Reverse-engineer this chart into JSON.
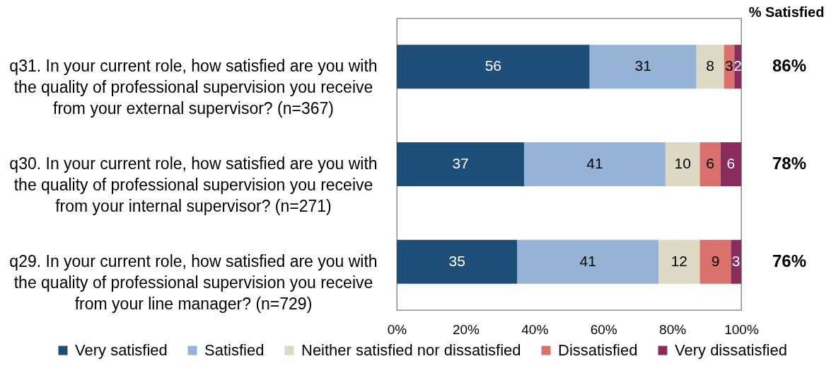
{
  "chart_data": {
    "type": "bar",
    "orientation": "horizontal",
    "stacked": true,
    "categories": [
      "q31. In your current role, how satisfied are you with the quality of professional supervision you receive from your external supervisor? (n=367)",
      "q30. In your current role, how satisfied are you with the quality of professional supervision you receive from your internal supervisor? (n=271)",
      "q29. In your current role, how satisfied are you with the quality of professional supervision you receive from your line manager? (n=729)"
    ],
    "series": [
      {
        "name": "Very satisfied",
        "color": "#1f4e79",
        "values": [
          56,
          37,
          35
        ]
      },
      {
        "name": "Satisfied",
        "color": "#95b3d7",
        "values": [
          31,
          41,
          41
        ]
      },
      {
        "name": "Neither satisfied nor dissatisfied",
        "color": "#ddd9c4",
        "values": [
          8,
          10,
          12
        ]
      },
      {
        "name": "Dissatisfied",
        "color": "#d9706c",
        "values": [
          3,
          6,
          9
        ]
      },
      {
        "name": "Very dissatisfied",
        "color": "#8b2c5f",
        "values": [
          2,
          6,
          3
        ]
      }
    ],
    "xlim": [
      0,
      100
    ],
    "xticks": [
      {
        "value": 0,
        "label": "0%"
      },
      {
        "value": 20,
        "label": "20%"
      },
      {
        "value": 40,
        "label": "40%"
      },
      {
        "value": 60,
        "label": "60%"
      },
      {
        "value": 80,
        "label": "80%"
      },
      {
        "value": 100,
        "label": "100%"
      }
    ],
    "data_labels": true,
    "legend": "bottom",
    "annotations": [
      "% Satisfied",
      "86%",
      "78%",
      "76%"
    ]
  }
}
